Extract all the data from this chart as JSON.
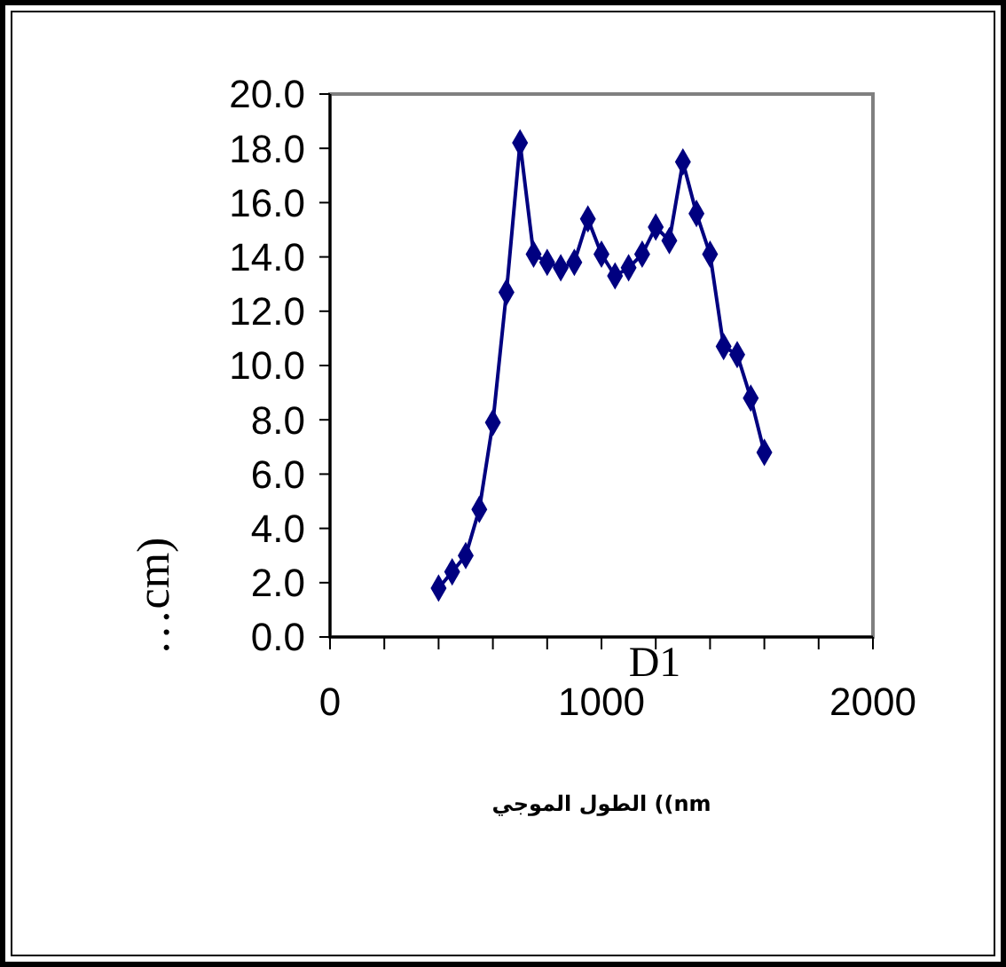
{
  "chart_data": {
    "type": "line",
    "ylabel": "…cm)",
    "xlabel": "الطول الموجي ((nm",
    "annotations": [
      "D1"
    ],
    "x": [
      400,
      450,
      500,
      550,
      600,
      650,
      700,
      750,
      800,
      850,
      900,
      950,
      1000,
      1050,
      1100,
      1150,
      1200,
      1250,
      1300,
      1350,
      1400,
      1450,
      1500,
      1550,
      1600
    ],
    "series": [
      {
        "color": "#000080",
        "values": [
          1.8,
          2.4,
          3.0,
          4.7,
          7.9,
          12.7,
          18.2,
          14.1,
          13.8,
          13.6,
          13.8,
          15.4,
          14.1,
          13.3,
          13.6,
          14.1,
          15.1,
          14.6,
          17.5,
          15.6,
          14.1,
          10.7,
          10.4,
          8.8,
          6.8
        ]
      }
    ],
    "xlim": [
      0,
      2000
    ],
    "xticks": [
      0,
      {
        "value": 200,
        "label": null
      },
      {
        "value": 400,
        "label": null
      },
      {
        "value": 600,
        "label": null
      },
      {
        "value": 800,
        "label": null
      },
      1000,
      {
        "value": 1200,
        "label": null
      },
      {
        "value": 1400,
        "label": null
      },
      {
        "value": 1600,
        "label": null
      },
      {
        "value": 1800,
        "label": null
      },
      2000
    ],
    "ylim": [
      0,
      20
    ],
    "yticks": [
      {
        "value": 0,
        "label": "0.0"
      },
      {
        "value": 2,
        "label": "2.0"
      },
      {
        "value": 4,
        "label": "4.0"
      },
      {
        "value": 6,
        "label": "6.0"
      },
      {
        "value": 8,
        "label": "8.0"
      },
      {
        "value": 10,
        "label": "10.0"
      },
      {
        "value": 12,
        "label": "12.0"
      },
      {
        "value": 14,
        "label": "14.0"
      },
      {
        "value": 16,
        "label": "16.0"
      },
      {
        "value": 18,
        "label": "18.0"
      },
      {
        "value": 20,
        "label": "20.0"
      }
    ],
    "marker": "diamond",
    "line_style": "solid"
  }
}
